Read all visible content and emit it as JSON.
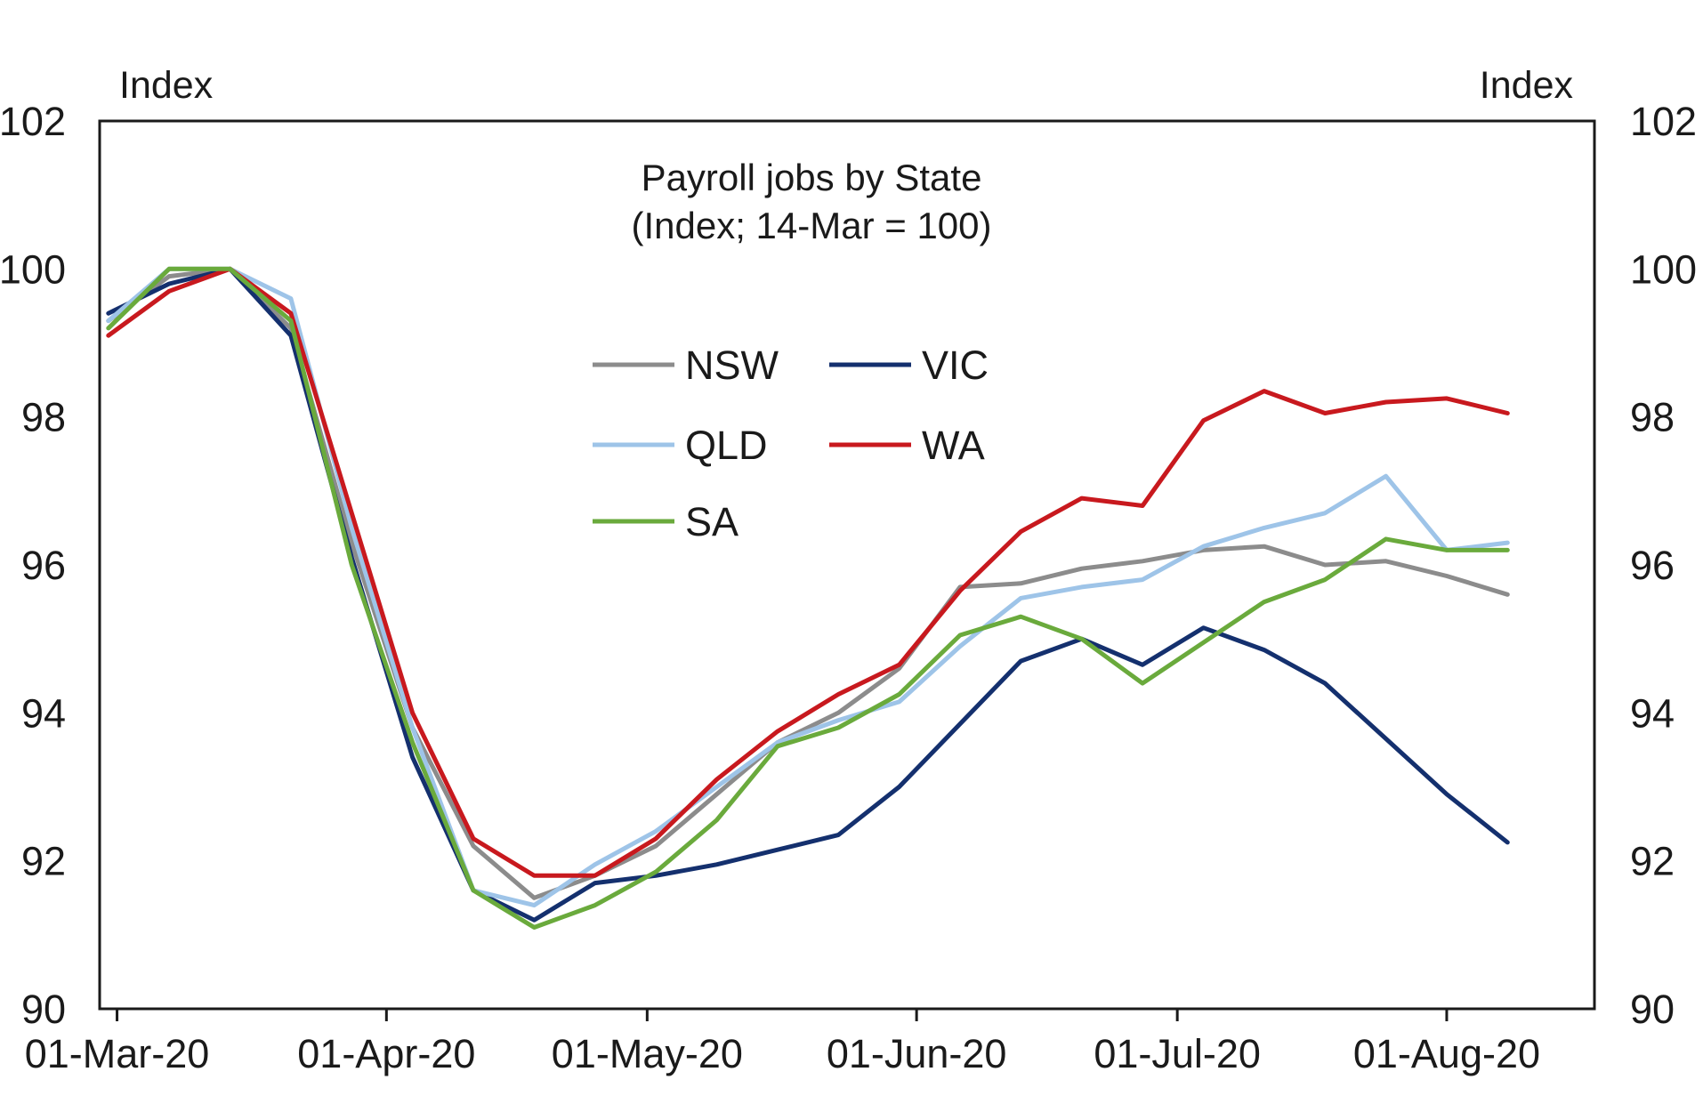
{
  "chart_data": {
    "type": "line",
    "title": "Payroll jobs by State",
    "subtitle": "(Index; 14-Mar = 100)",
    "ylabel_left": "Index",
    "ylabel_right": "Index",
    "ylim": [
      90,
      102
    ],
    "yticks": [
      "102",
      "100",
      "98",
      "96",
      "94",
      "92",
      "90"
    ],
    "xlim": [
      "2020-02-28",
      "2020-08-18"
    ],
    "xticks": [
      {
        "date": "2020-03-01",
        "label": "01-Mar-20"
      },
      {
        "date": "2020-04-01",
        "label": "01-Apr-20"
      },
      {
        "date": "2020-05-01",
        "label": "01-May-20"
      },
      {
        "date": "2020-06-01",
        "label": "01-Jun-20"
      },
      {
        "date": "2020-07-01",
        "label": "01-Jul-20"
      },
      {
        "date": "2020-08-01",
        "label": "01-Aug-20"
      }
    ],
    "x": [
      "2020-02-29",
      "2020-03-07",
      "2020-03-14",
      "2020-03-21",
      "2020-03-28",
      "2020-04-04",
      "2020-04-11",
      "2020-04-18",
      "2020-04-25",
      "2020-05-02",
      "2020-05-09",
      "2020-05-16",
      "2020-05-23",
      "2020-05-30",
      "2020-06-06",
      "2020-06-13",
      "2020-06-20",
      "2020-06-27",
      "2020-07-04",
      "2020-07-11",
      "2020-07-18",
      "2020-07-25",
      "2020-08-01",
      "2020-08-08"
    ],
    "legend_position": "upper-center",
    "grid": false,
    "series": [
      {
        "name": "NSW",
        "color": "#8c8c8c",
        "values": [
          99.3,
          99.9,
          100.0,
          99.2,
          96.3,
          93.8,
          92.2,
          91.5,
          91.8,
          92.2,
          92.9,
          93.6,
          94.0,
          94.6,
          95.7,
          95.75,
          95.95,
          96.05,
          96.2,
          96.25,
          96.0,
          96.05,
          95.85,
          95.6
        ]
      },
      {
        "name": "VIC",
        "color": "#14306e",
        "values": [
          99.4,
          99.8,
          100.0,
          99.1,
          96.1,
          93.4,
          91.6,
          91.2,
          91.7,
          91.8,
          91.95,
          92.15,
          92.35,
          93.0,
          93.85,
          94.7,
          95.0,
          94.65,
          95.15,
          94.85,
          94.4,
          93.65,
          92.9,
          92.25
        ]
      },
      {
        "name": "QLD",
        "color": "#9ec4e8",
        "values": [
          99.3,
          100.0,
          100.0,
          99.6,
          96.5,
          93.8,
          91.6,
          91.4,
          91.95,
          92.4,
          93.0,
          93.6,
          93.9,
          94.15,
          94.9,
          95.55,
          95.7,
          95.8,
          96.25,
          96.5,
          96.7,
          97.2,
          96.2,
          96.3
        ]
      },
      {
        "name": "WA",
        "color": "#c8191e",
        "values": [
          99.1,
          99.7,
          100.0,
          99.4,
          96.7,
          94.0,
          92.3,
          91.8,
          91.8,
          92.3,
          93.1,
          93.75,
          94.25,
          94.65,
          95.65,
          96.45,
          96.9,
          96.8,
          97.95,
          98.35,
          98.05,
          98.2,
          98.25,
          98.05
        ]
      },
      {
        "name": "SA",
        "color": "#6aaa3c",
        "values": [
          99.2,
          100.0,
          100.0,
          99.3,
          96.0,
          93.6,
          91.6,
          91.1,
          91.4,
          91.85,
          92.55,
          93.55,
          93.8,
          94.25,
          95.05,
          95.3,
          95.0,
          94.4,
          94.95,
          95.5,
          95.8,
          96.35,
          96.2,
          96.2
        ]
      }
    ]
  }
}
